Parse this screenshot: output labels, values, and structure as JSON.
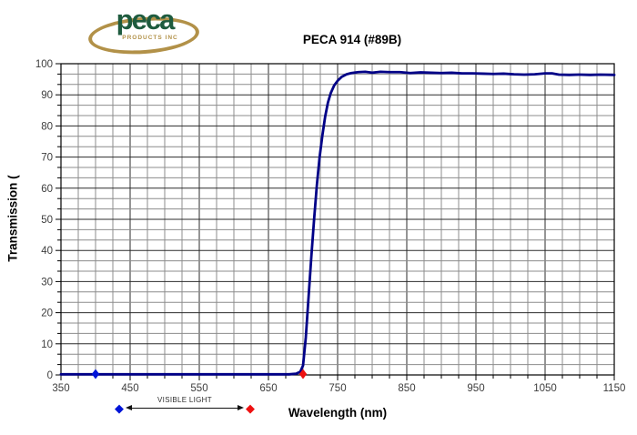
{
  "page": {
    "background": "#ffffff"
  },
  "logo": {
    "text": "peca",
    "subtext": "PRODUCTS INC",
    "text_color": "#1e5b3e",
    "ring_color": "#b29148"
  },
  "chart_data": {
    "type": "line",
    "title": "PECA 914 (#89B)",
    "xlabel": "Wavelength (nm)",
    "ylabel": "Transmission (",
    "xlim": [
      350,
      1150
    ],
    "ylim": [
      0,
      100
    ],
    "x_major_ticks": [
      350,
      450,
      550,
      650,
      750,
      850,
      950,
      1050,
      1150
    ],
    "x_minor_step": 25,
    "y_major_ticks": [
      0,
      10,
      20,
      30,
      40,
      50,
      60,
      70,
      80,
      90,
      100
    ],
    "y_minor_divisions_per_major": 3,
    "grid": true,
    "legend": "none",
    "colors": {
      "line": "#000087",
      "grid_major": "#2b2b2b",
      "grid_minor": "#8c8c8c",
      "tick_text": "#3d3d3d",
      "border": "#000000",
      "marker_blue": "#0014d8",
      "marker_red": "#ee1111"
    },
    "series": [
      {
        "name": "transmission",
        "points": [
          [
            350,
            0.2
          ],
          [
            400,
            0.2
          ],
          [
            450,
            0.2
          ],
          [
            500,
            0.2
          ],
          [
            550,
            0.2
          ],
          [
            600,
            0.2
          ],
          [
            650,
            0.2
          ],
          [
            680,
            0.2
          ],
          [
            690,
            0.4
          ],
          [
            696,
            1
          ],
          [
            700,
            3
          ],
          [
            704,
            12
          ],
          [
            708,
            25
          ],
          [
            712,
            38
          ],
          [
            716,
            50
          ],
          [
            720,
            61
          ],
          [
            724,
            70
          ],
          [
            728,
            77
          ],
          [
            732,
            83
          ],
          [
            736,
            87.5
          ],
          [
            740,
            90.5
          ],
          [
            745,
            93
          ],
          [
            750,
            94.5
          ],
          [
            756,
            95.8
          ],
          [
            763,
            96.6
          ],
          [
            770,
            97
          ],
          [
            780,
            97.3
          ],
          [
            790,
            97.4
          ],
          [
            800,
            97.1
          ],
          [
            812,
            97.4
          ],
          [
            825,
            97.3
          ],
          [
            840,
            97.3
          ],
          [
            855,
            97.0
          ],
          [
            870,
            97.2
          ],
          [
            885,
            97.1
          ],
          [
            900,
            97.0
          ],
          [
            915,
            97.1
          ],
          [
            930,
            96.9
          ],
          [
            945,
            96.9
          ],
          [
            960,
            96.8
          ],
          [
            975,
            96.7
          ],
          [
            990,
            96.8
          ],
          [
            1005,
            96.6
          ],
          [
            1020,
            96.5
          ],
          [
            1035,
            96.6
          ],
          [
            1050,
            96.9
          ],
          [
            1060,
            96.9
          ],
          [
            1070,
            96.5
          ],
          [
            1085,
            96.4
          ],
          [
            1100,
            96.5
          ],
          [
            1115,
            96.4
          ],
          [
            1130,
            96.5
          ],
          [
            1150,
            96.4
          ]
        ]
      }
    ],
    "axis_markers": [
      {
        "shape": "diamond",
        "color": "#0014d8",
        "x": 400,
        "y": 0.3
      },
      {
        "shape": "diamond",
        "color": "#ee1111",
        "x": 700,
        "y": 0.3
      }
    ],
    "annotation": {
      "label": "VISIBLE LIGHT"
    }
  }
}
